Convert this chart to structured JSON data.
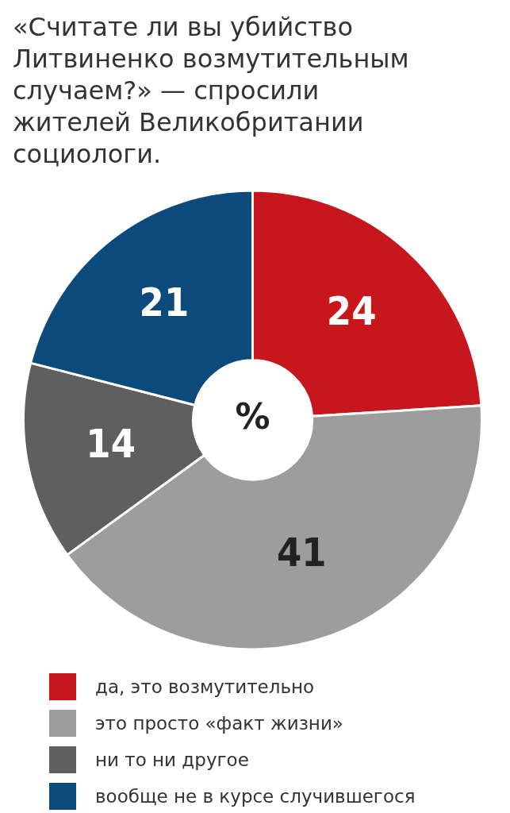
{
  "chart_data": {
    "type": "donut",
    "title": "«Считате ли вы убийство Литвиненко возмутительным случаем?» — спросили жителей Великобритании социологи.",
    "categories": [
      "да, это возмутительно",
      "это просто «факт жизни»",
      "ни то ни другое",
      "вообще не в курсе случившегося"
    ],
    "values": [
      24,
      41,
      14,
      21
    ],
    "colors": [
      "#c8161d",
      "#9d9d9d",
      "#5f5f5f",
      "#0d4a7c"
    ],
    "data_labels": true,
    "legend": "bottom left",
    "annotations": [
      "%"
    ]
  }
}
